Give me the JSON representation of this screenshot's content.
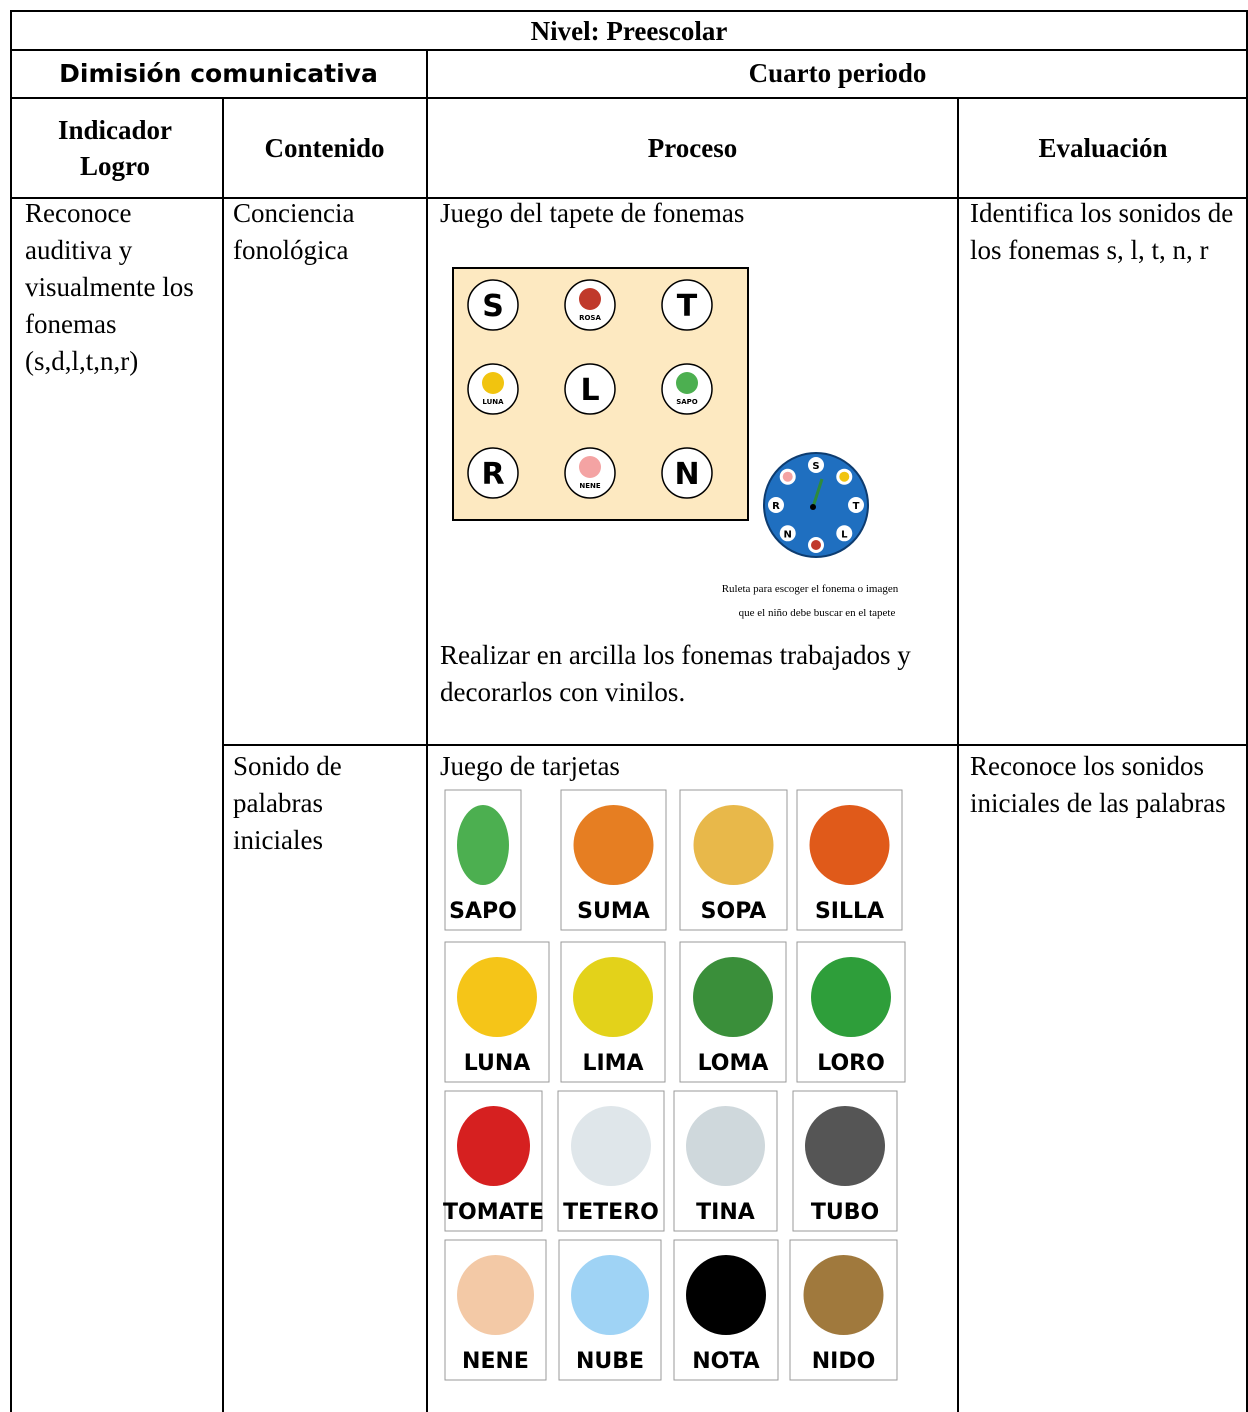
{
  "table": {
    "title": "Nivel: Preescolar",
    "group_headers": [
      "Dimisión comunicativa",
      "Cuarto periodo"
    ],
    "headers": [
      "Indicador Logro",
      "Contenido",
      "Proceso",
      "Evaluación"
    ],
    "indicator": "Reconoce auditiva y visualmente los fonemas (s,d,l,t,n,r)",
    "rows": [
      {
        "contenido": "Conciencia fonológica",
        "proceso_title": "Juego del tapete de fonemas",
        "mat": [
          "S",
          "ROSA",
          "T",
          "LUNA",
          "L",
          "SAPO",
          "R",
          "NENE",
          "N"
        ],
        "roulette": [
          "S",
          null,
          "T",
          "L",
          null,
          "N",
          "R",
          null
        ],
        "caption": [
          "Ruleta para escoger el fonema o imagen",
          "que el niño debe buscar en el tapete"
        ],
        "proceso_text": "Realizar en arcilla los fonemas trabajados y decorarlos con vinilos.",
        "evaluacion": "Identifica los sonidos de los fonemas s, l, t, n, r"
      },
      {
        "contenido": "Sonido de palabras iniciales",
        "proceso_title": "Juego de tarjetas",
        "cards": [
          [
            "SAPO",
            "SUMA",
            "SOPA",
            "SILLA"
          ],
          [
            "LUNA",
            "LIMA",
            "LOMA",
            "LORO"
          ],
          [
            "TOMATE",
            "TETERO",
            "TINA",
            "TUBO"
          ],
          [
            "NENE",
            "NUBE",
            "NOTA",
            "NIDO"
          ]
        ],
        "evaluacion": "Reconoce los sonidos iniciales de las palabras"
      }
    ]
  }
}
